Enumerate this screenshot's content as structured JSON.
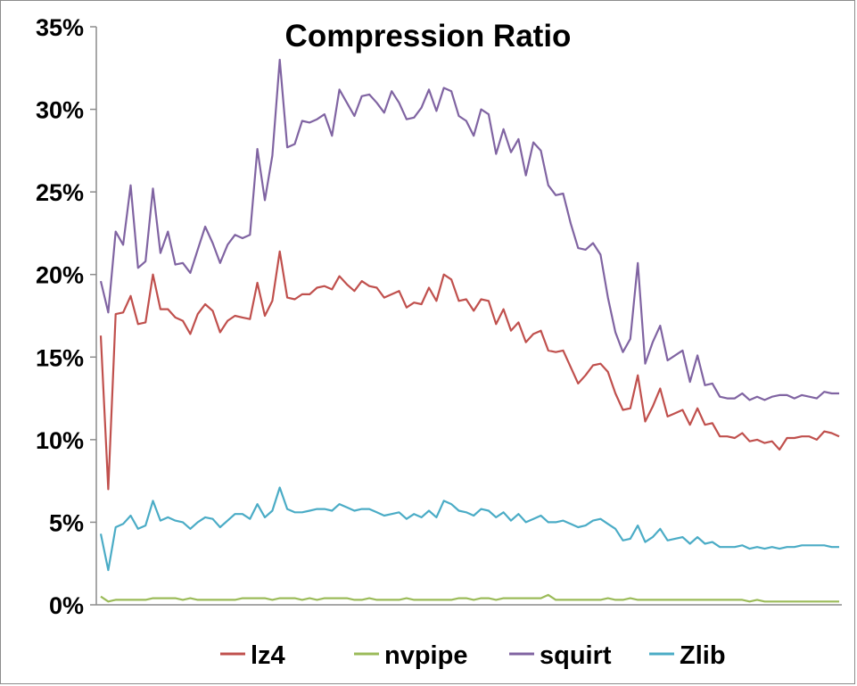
{
  "chart_data": {
    "type": "line",
    "title": "Compression Ratio",
    "xlabel": "",
    "ylabel": "",
    "ylim": [
      0,
      35
    ],
    "yticks": [
      "0%",
      "5%",
      "10%",
      "15%",
      "20%",
      "25%",
      "30%",
      "35%"
    ],
    "ytick_values": [
      0,
      5,
      10,
      15,
      20,
      25,
      30,
      35
    ],
    "grid": false,
    "legend_position": "bottom",
    "series": [
      {
        "name": "lz4",
        "color": "#C0504D",
        "values": [
          16.3,
          7.0,
          17.6,
          17.7,
          18.7,
          17.0,
          17.1,
          20.0,
          17.9,
          17.9,
          17.4,
          17.2,
          16.4,
          17.6,
          18.2,
          17.8,
          16.5,
          17.2,
          17.5,
          17.4,
          17.3,
          19.5,
          17.5,
          18.4,
          21.4,
          18.6,
          18.5,
          18.8,
          18.8,
          19.2,
          19.3,
          19.1,
          19.9,
          19.4,
          19.0,
          19.6,
          19.3,
          19.2,
          18.6,
          18.8,
          19.0,
          18.0,
          18.3,
          18.2,
          19.2,
          18.4,
          20.0,
          19.7,
          18.4,
          18.5,
          17.8,
          18.5,
          18.4,
          17.0,
          17.9,
          16.6,
          17.1,
          15.9,
          16.4,
          16.6,
          15.4,
          15.3,
          15.4,
          14.4,
          13.4,
          13.9,
          14.5,
          14.6,
          14.1,
          12.8,
          11.8,
          11.9,
          13.9,
          11.1,
          12.0,
          13.1,
          11.4,
          11.6,
          11.8,
          10.9,
          11.9,
          10.9,
          11.0,
          10.2,
          10.2,
          10.1,
          10.4,
          9.9,
          10.0,
          9.8,
          9.9,
          9.4,
          10.1,
          10.1,
          10.2,
          10.2,
          10.0,
          10.5,
          10.4,
          10.2
        ]
      },
      {
        "name": "nvpipe",
        "color": "#9BBB59",
        "values": [
          0.5,
          0.2,
          0.3,
          0.3,
          0.3,
          0.3,
          0.3,
          0.4,
          0.4,
          0.4,
          0.4,
          0.3,
          0.4,
          0.3,
          0.3,
          0.3,
          0.3,
          0.3,
          0.3,
          0.4,
          0.4,
          0.4,
          0.4,
          0.3,
          0.4,
          0.4,
          0.4,
          0.3,
          0.4,
          0.3,
          0.4,
          0.4,
          0.4,
          0.4,
          0.3,
          0.3,
          0.4,
          0.3,
          0.3,
          0.3,
          0.3,
          0.4,
          0.3,
          0.3,
          0.3,
          0.3,
          0.3,
          0.3,
          0.4,
          0.4,
          0.3,
          0.4,
          0.4,
          0.3,
          0.4,
          0.4,
          0.4,
          0.4,
          0.4,
          0.4,
          0.6,
          0.3,
          0.3,
          0.3,
          0.3,
          0.3,
          0.3,
          0.3,
          0.4,
          0.3,
          0.3,
          0.4,
          0.3,
          0.3,
          0.3,
          0.3,
          0.3,
          0.3,
          0.3,
          0.3,
          0.3,
          0.3,
          0.3,
          0.3,
          0.3,
          0.3,
          0.3,
          0.2,
          0.3,
          0.2,
          0.2,
          0.2,
          0.2,
          0.2,
          0.2,
          0.2,
          0.2,
          0.2,
          0.2,
          0.2
        ]
      },
      {
        "name": "squirt",
        "color": "#8064A2",
        "values": [
          19.6,
          17.7,
          22.6,
          21.8,
          25.4,
          20.4,
          20.8,
          25.2,
          21.3,
          22.6,
          20.6,
          20.7,
          20.1,
          21.5,
          22.9,
          21.9,
          20.7,
          21.8,
          22.4,
          22.2,
          22.4,
          27.6,
          24.5,
          27.2,
          33.0,
          27.7,
          27.9,
          29.3,
          29.2,
          29.4,
          29.7,
          28.4,
          31.2,
          30.4,
          29.6,
          30.8,
          30.9,
          30.4,
          29.8,
          31.1,
          30.4,
          29.4,
          29.5,
          30.1,
          31.2,
          29.9,
          31.3,
          31.1,
          29.6,
          29.3,
          28.4,
          30.0,
          29.7,
          27.3,
          28.8,
          27.4,
          28.2,
          26.0,
          28.0,
          27.5,
          25.4,
          24.8,
          24.9,
          23.1,
          21.6,
          21.5,
          21.9,
          21.2,
          18.6,
          16.5,
          15.3,
          16.1,
          20.7,
          14.6,
          15.9,
          16.9,
          14.8,
          15.1,
          15.4,
          13.5,
          15.1,
          13.3,
          13.4,
          12.6,
          12.5,
          12.5,
          12.8,
          12.4,
          12.6,
          12.4,
          12.6,
          12.7,
          12.7,
          12.5,
          12.7,
          12.6,
          12.5,
          12.9,
          12.8,
          12.8
        ]
      },
      {
        "name": "Zlib",
        "color": "#4BACC6",
        "values": [
          4.3,
          2.1,
          4.7,
          4.9,
          5.4,
          4.6,
          4.8,
          6.3,
          5.1,
          5.3,
          5.1,
          5.0,
          4.6,
          5.0,
          5.3,
          5.2,
          4.7,
          5.1,
          5.5,
          5.5,
          5.2,
          6.1,
          5.3,
          5.7,
          7.1,
          5.8,
          5.6,
          5.6,
          5.7,
          5.8,
          5.8,
          5.7,
          6.1,
          5.9,
          5.7,
          5.8,
          5.8,
          5.6,
          5.4,
          5.5,
          5.6,
          5.2,
          5.5,
          5.3,
          5.7,
          5.3,
          6.3,
          6.1,
          5.7,
          5.6,
          5.4,
          5.8,
          5.7,
          5.3,
          5.6,
          5.1,
          5.5,
          5.0,
          5.2,
          5.4,
          5.0,
          5.0,
          5.1,
          4.9,
          4.7,
          4.8,
          5.1,
          5.2,
          4.9,
          4.6,
          3.9,
          4.0,
          4.8,
          3.8,
          4.1,
          4.6,
          3.9,
          4.0,
          4.1,
          3.7,
          4.1,
          3.7,
          3.8,
          3.5,
          3.5,
          3.5,
          3.6,
          3.4,
          3.5,
          3.4,
          3.5,
          3.4,
          3.5,
          3.5,
          3.6,
          3.6,
          3.6,
          3.6,
          3.5,
          3.5
        ]
      }
    ]
  }
}
